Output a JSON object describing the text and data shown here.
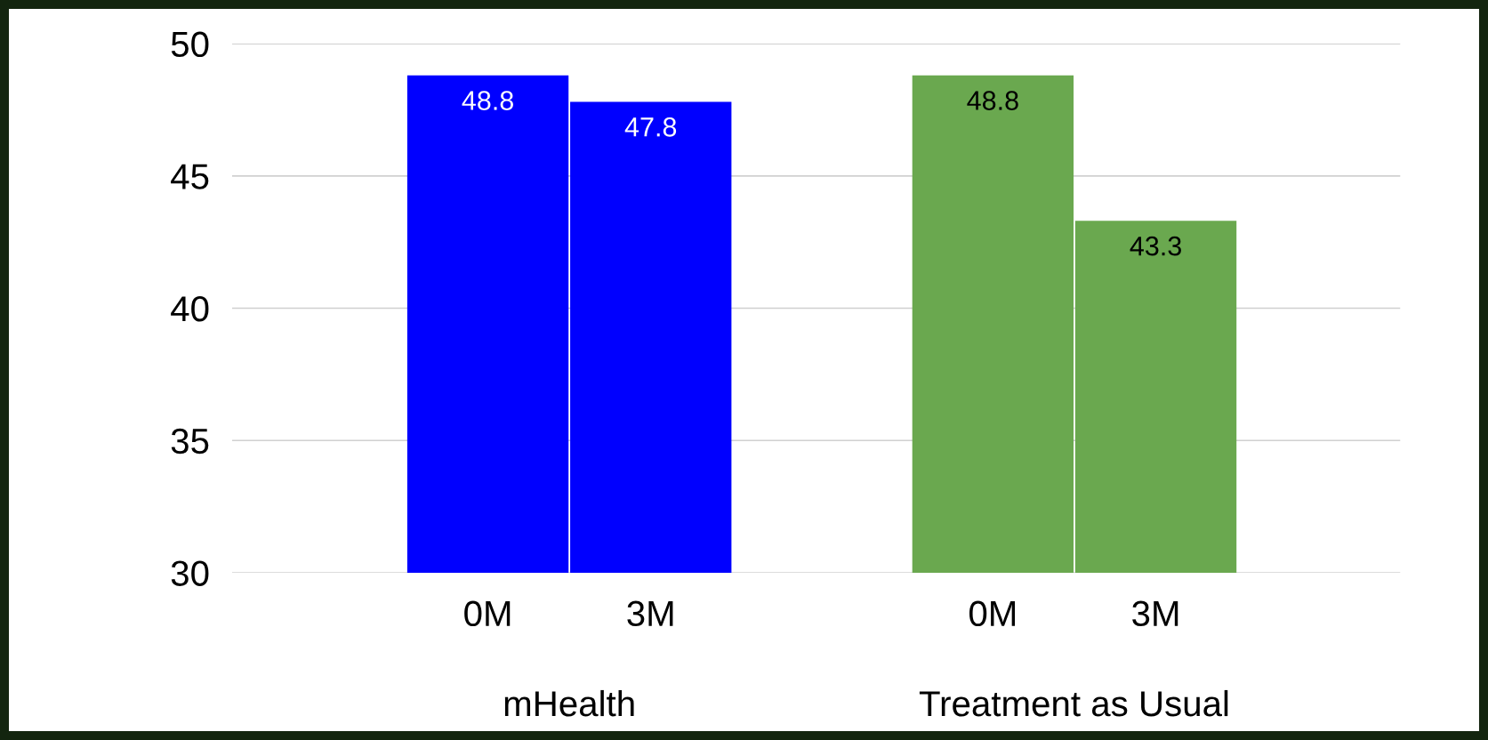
{
  "chart_data": {
    "type": "bar",
    "categories": [
      "0M",
      "3M",
      "0M",
      "3M"
    ],
    "values": [
      48.8,
      47.8,
      48.8,
      43.3
    ],
    "colors": [
      "#0000ff",
      "#0000ff",
      "#6aa84f",
      "#6aa84f"
    ],
    "annotations": [
      "mHealth",
      "Treatment as Usual"
    ],
    "ylim": [
      30,
      50
    ],
    "yticks": [
      30,
      35,
      40,
      45,
      50
    ],
    "grid": "y",
    "data_labels": true,
    "legend": false
  }
}
